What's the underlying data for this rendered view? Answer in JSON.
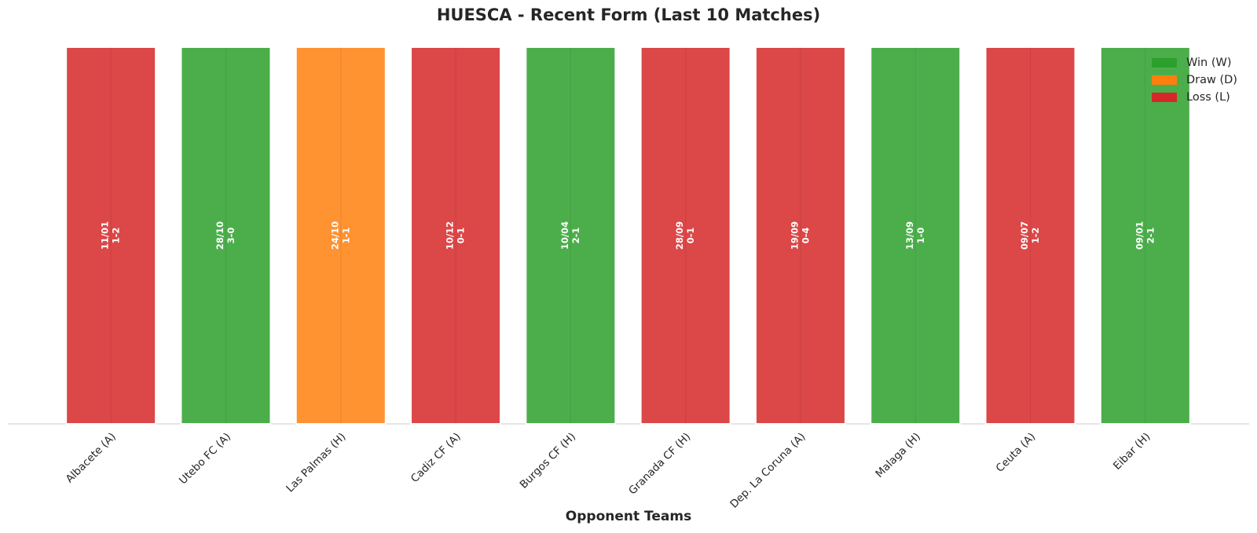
{
  "chart_data": {
    "type": "bar",
    "title": "HUESCA - Recent Form (Last 10 Matches)",
    "x_label": "Opponent Teams",
    "categories": [
      "Albacete (A)",
      "Utebo FC (A)",
      "Las Palmas (H)",
      "Cadiz CF (A)",
      "Burgos CF (H)",
      "Granada CF (H)",
      "Dep. La Coruna (A)",
      "Malaga (H)",
      "Ceuta (A)",
      "Eibar (H)"
    ],
    "dates": [
      "11/01",
      "28/10",
      "24/10",
      "10/12",
      "10/04",
      "28/09",
      "19/09",
      "13/09",
      "09/07",
      "09/01"
    ],
    "scores": [
      "1-2",
      "3-0",
      "1-1",
      "0-1",
      "2-1",
      "0-1",
      "0-4",
      "1-0",
      "1-2",
      "2-1"
    ],
    "series": [
      {
        "name": "Win (W)",
        "color": "#2ca02c",
        "values": [
          null,
          1,
          null,
          null,
          1,
          null,
          null,
          1,
          null,
          1
        ]
      },
      {
        "name": "Draw (D)",
        "color": "#ff7f0e",
        "values": [
          null,
          null,
          1,
          null,
          null,
          null,
          null,
          null,
          null,
          null
        ]
      },
      {
        "name": "Loss (L)",
        "color": "#d62728",
        "values": [
          1,
          null,
          null,
          1,
          null,
          1,
          1,
          null,
          1,
          null
        ]
      }
    ],
    "ylim": [
      0,
      1
    ],
    "grid": true,
    "legend": "upper right"
  }
}
